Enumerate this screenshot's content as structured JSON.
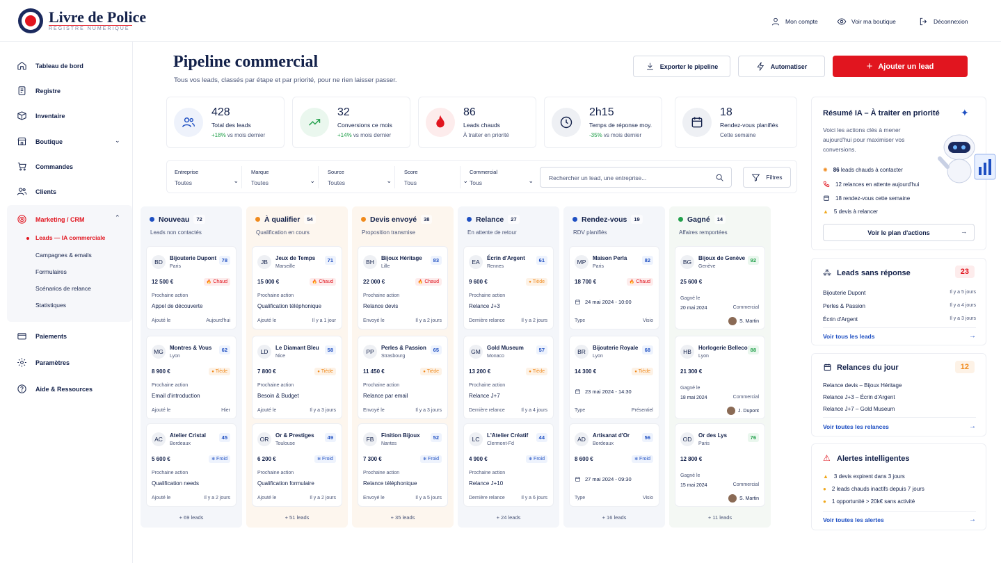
{
  "brand": {
    "title": "Livre de Police",
    "subtitle": "REGISTRE NUMÉRIQUE"
  },
  "header_links": [
    {
      "label": "Mon compte",
      "icon": "user-icon"
    },
    {
      "label": "Voir ma boutique",
      "icon": "eye-icon"
    },
    {
      "label": "Déconnexion",
      "icon": "logout-icon"
    }
  ],
  "sidebar": {
    "items": [
      {
        "label": "Tableau de bord",
        "icon": "home-icon"
      },
      {
        "label": "Registre",
        "icon": "document-icon"
      },
      {
        "label": "Inventaire",
        "icon": "box-icon"
      },
      {
        "label": "Boutique",
        "icon": "store-icon"
      },
      {
        "label": "Commandes",
        "icon": "cart-icon"
      },
      {
        "label": "Clients",
        "icon": "users-icon"
      },
      {
        "label": "Marketing / CRM",
        "icon": "target-icon"
      },
      {
        "label": "Paiements",
        "icon": "card-icon"
      },
      {
        "label": "Paramètres",
        "icon": "gear-icon"
      },
      {
        "label": "Aide & Ressources",
        "icon": "help-icon"
      }
    ],
    "marketing_sub": [
      "Leads — IA commerciale",
      "Campagnes & emails",
      "Formulaires",
      "Scénarios de relance",
      "Statistiques"
    ]
  },
  "page": {
    "title": "Pipeline commercial",
    "subtitle": "Tous vos leads, classés par étape et par priorité, pour ne rien laisser passer.",
    "export_label": "Exporter le pipeline",
    "automate_label": "Automatiser",
    "add_label": "Ajouter un lead"
  },
  "stats": [
    {
      "value": "428",
      "label": "Total des leads",
      "delta": "+18%",
      "note": " vs mois dernier",
      "icon": "users-icon"
    },
    {
      "value": "32",
      "label": "Conversions ce mois",
      "delta": "+14%",
      "note": " vs mois dernier",
      "icon": "trend-up-icon"
    },
    {
      "value": "86",
      "label": "Leads chauds",
      "delta": "",
      "note": "À traiter en priorité",
      "icon": "flame-icon"
    },
    {
      "value": "2h15",
      "label": "Temps de réponse moy.",
      "delta": "-35%",
      "note": " vs mois dernier",
      "icon": "clock-icon"
    },
    {
      "value": "18",
      "label": "Rendez-vous planifiés",
      "delta": "",
      "note": "Cette semaine",
      "icon": "calendar-icon"
    }
  ],
  "filters": [
    {
      "label": "Entreprise",
      "value": "Toutes"
    },
    {
      "label": "Marque",
      "value": "Toutes"
    },
    {
      "label": "Source",
      "value": "Toutes"
    },
    {
      "label": "Score",
      "value": "Tous"
    },
    {
      "label": "Commercial",
      "value": "Tous"
    }
  ],
  "search_placeholder": "Rechercher un lead, une entreprise...",
  "filters_button": "Filtres",
  "columns": [
    {
      "title": "Nouveau",
      "count": "72",
      "sub": "Leads non contactés",
      "more": "+ 69 leads",
      "color": "#1e4fc2",
      "cards": [
        {
          "initials": "BD",
          "name": "Bijouterie Dupont",
          "city": "Paris",
          "score": "78",
          "amount": "12 500 €",
          "tag": "Chaud",
          "next_label": "Prochaine action",
          "next": "Appel de découverte",
          "added_label": "Ajouté le",
          "added": "Aujourd'hui"
        },
        {
          "initials": "MG",
          "name": "Montres & Vous",
          "city": "Lyon",
          "score": "62",
          "amount": "8 900 €",
          "tag": "Tiède",
          "next_label": "Prochaine action",
          "next": "Email d'introduction",
          "added_label": "Ajouté le",
          "added": "Hier"
        },
        {
          "initials": "AC",
          "name": "Atelier Cristal",
          "city": "Bordeaux",
          "score": "45",
          "amount": "5 600 €",
          "tag": "Froid",
          "next_label": "Prochaine action",
          "next": "Qualification needs",
          "added_label": "Ajouté le",
          "added": "Il y a 2 jours"
        }
      ]
    },
    {
      "title": "À qualifier",
      "count": "54",
      "sub": "Qualification en cours",
      "more": "+ 51 leads",
      "color": "#f08a1c",
      "cards": [
        {
          "initials": "JB",
          "name": "Jeux de Temps",
          "city": "Marseille",
          "score": "71",
          "amount": "15 000 €",
          "tag": "Chaud",
          "next_label": "Prochaine action",
          "next": "Qualification téléphonique",
          "added_label": "Ajouté le",
          "added": "Il y a 1 jour"
        },
        {
          "initials": "LD",
          "name": "Le Diamant Bleu",
          "city": "Nice",
          "score": "58",
          "amount": "7 800 €",
          "tag": "Tiède",
          "next_label": "Prochaine action",
          "next": "Besoin & Budget",
          "added_label": "Ajouté le",
          "added": "Il y a 3 jours"
        },
        {
          "initials": "OR",
          "name": "Or & Prestiges",
          "city": "Toulouse",
          "score": "49",
          "amount": "6 200 €",
          "tag": "Froid",
          "next_label": "Prochaine action",
          "next": "Qualification formulaire",
          "added_label": "Ajouté le",
          "added": "Il y a 2 jours"
        }
      ]
    },
    {
      "title": "Devis envoyé",
      "count": "38",
      "sub": "Proposition transmise",
      "more": "+ 35 leads",
      "color": "#f08a1c",
      "cards": [
        {
          "initials": "BH",
          "name": "Bijoux Héritage",
          "city": "Lille",
          "score": "83",
          "amount": "22 000 €",
          "tag": "Chaud",
          "next_label": "Prochaine action",
          "next": "Relance devis",
          "added_label": "Envoyé le",
          "added": "Il y a 2 jours"
        },
        {
          "initials": "PP",
          "name": "Perles & Passion",
          "city": "Strasbourg",
          "score": "65",
          "amount": "11 450 €",
          "tag": "Tiède",
          "next_label": "Prochaine action",
          "next": "Relance par email",
          "added_label": "Envoyé le",
          "added": "Il y a 3 jours"
        },
        {
          "initials": "FB",
          "name": "Finition Bijoux",
          "city": "Nantes",
          "score": "52",
          "amount": "7 300 €",
          "tag": "Froid",
          "next_label": "Prochaine action",
          "next": "Relance téléphonique",
          "added_label": "Envoyé le",
          "added": "Il y a 5 jours"
        }
      ]
    },
    {
      "title": "Relance",
      "count": "27",
      "sub": "En attente de retour",
      "more": "+ 24 leads",
      "color": "#1e4fc2",
      "cards": [
        {
          "initials": "EA",
          "name": "Écrin d'Argent",
          "city": "Rennes",
          "score": "61",
          "amount": "9 600 €",
          "tag": "Tiède",
          "next_label": "Prochaine action",
          "next": "Relance J+3",
          "added_label": "Dernière relance",
          "added": "Il y a 2 jours"
        },
        {
          "initials": "GM",
          "name": "Gold Museum",
          "city": "Monaco",
          "score": "57",
          "amount": "13 200 €",
          "tag": "Tiède",
          "next_label": "Prochaine action",
          "next": "Relance J+7",
          "added_label": "Dernière relance",
          "added": "Il y a 4 jours"
        },
        {
          "initials": "LC",
          "name": "L'Atelier Créatif",
          "city": "Clermont-Fd",
          "score": "44",
          "amount": "4 900 €",
          "tag": "Froid",
          "next_label": "Prochaine action",
          "next": "Relance J+10",
          "added_label": "Dernière relance",
          "added": "Il y a 6 jours"
        }
      ]
    },
    {
      "title": "Rendez-vous",
      "count": "19",
      "sub": "RDV planifiés",
      "more": "+ 16 leads",
      "color": "#1e4fc2",
      "cards": [
        {
          "initials": "MP",
          "name": "Maison Perla",
          "city": "Paris",
          "score": "82",
          "amount": "18 700 €",
          "tag": "Chaud",
          "date": "24 mai 2024 - 10:00",
          "type_label": "Type",
          "type": "Visio"
        },
        {
          "initials": "BR",
          "name": "Bijouterie Royale",
          "city": "Lyon",
          "score": "68",
          "amount": "14 300 €",
          "tag": "Tiède",
          "date": "23 mai 2024 - 14:30",
          "type_label": "Type",
          "type": "Présentiel"
        },
        {
          "initials": "AD",
          "name": "Artisanat d'Or",
          "city": "Bordeaux",
          "score": "56",
          "amount": "8 600 €",
          "tag": "Froid",
          "date": "27 mai 2024 - 09:30",
          "type_label": "Type",
          "type": "Visio"
        }
      ]
    },
    {
      "title": "Gagné",
      "count": "14",
      "sub": "Affaires remportées",
      "more": "+ 11 leads",
      "color": "#22a04b",
      "cards": [
        {
          "initials": "BG",
          "name": "Bijoux de Genève",
          "city": "Genève",
          "score": "92",
          "amount": "25 600 €",
          "won_label": "Gagné le",
          "won": "20 mai 2024",
          "rep_label": "Commercial",
          "rep": "S. Martin"
        },
        {
          "initials": "HB",
          "name": "Horlogerie Bellecour",
          "city": "Lyon",
          "score": "88",
          "amount": "21 300 €",
          "won_label": "Gagné le",
          "won": "18 mai 2024",
          "rep_label": "Commercial",
          "rep": "J. Dupont"
        },
        {
          "initials": "OD",
          "name": "Or des Lys",
          "city": "Paris",
          "score": "76",
          "amount": "12 800 €",
          "won_label": "Gagné le",
          "won": "15 mai 2024",
          "rep_label": "Commercial",
          "rep": "S. Martin"
        }
      ]
    }
  ],
  "ai_panel": {
    "title": "Résumé IA – À traiter en priorité",
    "text": "Voici les actions clés à mener aujourd'hui pour maximiser vos conversions.",
    "items": [
      {
        "bold": "86",
        "text": " leads chauds à contacter"
      },
      {
        "bold": "",
        "text": "12 relances en attente aujourd'hui"
      },
      {
        "bold": "",
        "text": "18 rendez-vous cette semaine"
      },
      {
        "bold": "",
        "text": "5 devis à relancer"
      }
    ],
    "button": "Voir le plan d'actions"
  },
  "no_reply": {
    "title": "Leads sans réponse",
    "count": "23",
    "rows": [
      {
        "name": "Bijouterie Dupont",
        "when": "Il y a 5 jours"
      },
      {
        "name": "Perles & Passion",
        "when": "Il y a 4 jours"
      },
      {
        "name": "Écrin d'Argent",
        "when": "Il y a 3 jours"
      }
    ],
    "link": "Voir tous les leads"
  },
  "followups": {
    "title": "Relances du jour",
    "count": "12",
    "rows": [
      "Relance devis – Bijoux Héritage",
      "Relance J+3 – Écrin d'Argent",
      "Relance J+7 – Gold Museum"
    ],
    "link": "Voir toutes les relances"
  },
  "alerts": {
    "title": "Alertes intelligentes",
    "rows": [
      "3 devis expirent dans 3 jours",
      "2 leads chauds inactifs depuis 7 jours",
      "1 opportunité > 20k€ sans activité"
    ],
    "link": "Voir toutes les alertes"
  },
  "colors": {
    "accent": "#e1151f",
    "navy": "#13214a",
    "link": "#1e4fc2",
    "green": "#22a04b",
    "orange": "#f08a1c"
  }
}
